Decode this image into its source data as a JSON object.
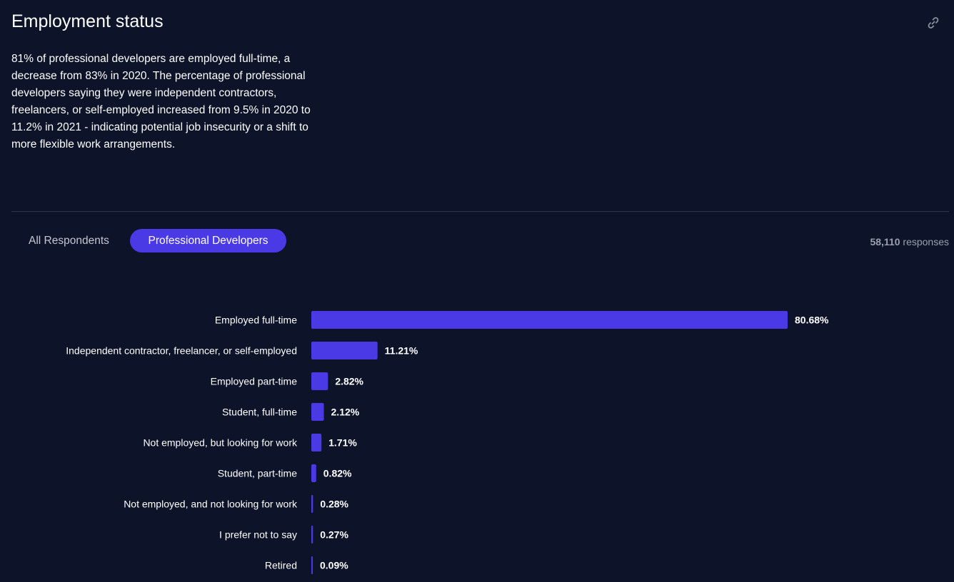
{
  "header": {
    "title": "Employment status",
    "description": "81% of professional developers are employed full-time, a decrease from 83% in 2020. The percentage of professional developers saying they were independent contractors, freelancers, or self-employed increased from 9.5% in 2020 to 11.2% in 2021 - indicating potential job insecurity or a shift to more flexible work arrangements.",
    "link_icon": "link-icon"
  },
  "tabs": [
    {
      "label": "All Respondents",
      "active": false
    },
    {
      "label": "Professional Developers",
      "active": true
    }
  ],
  "responses": {
    "count": "58,110",
    "label": "responses"
  },
  "colors": {
    "background": "#0d1328",
    "accent": "#4a3ae6",
    "divider": "#2e3550"
  },
  "chart_data": {
    "type": "bar",
    "orientation": "horizontal",
    "categories": [
      "Employed full-time",
      "Independent contractor, freelancer, or self-employed",
      "Employed part-time",
      "Student, full-time",
      "Not employed, but looking for work",
      "Student, part-time",
      "Not employed, and not looking for work",
      "I prefer not to say",
      "Retired"
    ],
    "values": [
      80.68,
      11.21,
      2.82,
      2.12,
      1.71,
      0.82,
      0.28,
      0.27,
      0.09
    ],
    "value_labels": [
      "80.68%",
      "11.21%",
      "2.82%",
      "2.12%",
      "1.71%",
      "0.82%",
      "0.28%",
      "0.27%",
      "0.09%"
    ],
    "color": "#4a3ae6",
    "grid": false
  }
}
